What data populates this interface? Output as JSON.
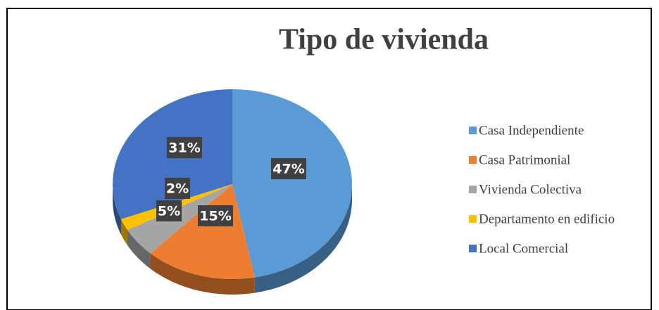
{
  "chart_data": {
    "type": "pie",
    "title": "Tipo de vivienda",
    "categories": [
      "Casa Independiente",
      "Casa Patrimonial",
      "Vivienda Colectiva",
      "Departamento en edificio",
      "Local Comercial"
    ],
    "values": [
      47,
      15,
      5,
      2,
      31
    ],
    "value_labels": [
      "47%",
      "15%",
      "5%",
      "2%",
      "31%"
    ],
    "colors": [
      "#5b9bd5",
      "#ed7d31",
      "#a5a5a5",
      "#ffc000",
      "#4472c4"
    ],
    "legend": "right"
  }
}
